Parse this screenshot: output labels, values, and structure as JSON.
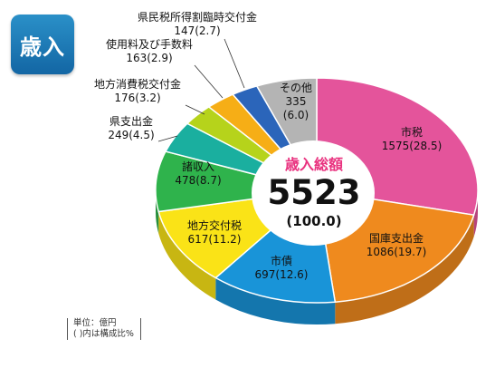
{
  "badge": "歳入",
  "chart_data": {
    "type": "pie",
    "center_title": "歳入総額",
    "total": 5523,
    "total_label": "5523",
    "total_pct_label": "(100.0)",
    "unit": "単位：億円",
    "note": "(  )内は構成比%",
    "slices": [
      {
        "name": "市税",
        "value": 1575,
        "pct": 28.5,
        "value_label": "1575(28.5)",
        "color": "#e4549b"
      },
      {
        "name": "国庫支出金",
        "value": 1086,
        "pct": 19.7,
        "value_label": "1086(19.7)",
        "color": "#ef8a1e"
      },
      {
        "name": "市債",
        "value": 697,
        "pct": 12.6,
        "value_label": "697(12.6)",
        "color": "#1994d8"
      },
      {
        "name": "地方交付税",
        "value": 617,
        "pct": 11.2,
        "value_label": "617(11.2)",
        "color": "#fae317"
      },
      {
        "name": "諸収入",
        "value": 478,
        "pct": 8.7,
        "value_label": "478(8.7)",
        "color": "#2fb34c"
      },
      {
        "name": "県支出金",
        "value": 249,
        "pct": 4.5,
        "value_label": "249(4.5)",
        "color": "#1aaf9f"
      },
      {
        "name": "地方消費税交付金",
        "value": 176,
        "pct": 3.2,
        "value_label": "176(3.2)",
        "color": "#b6d31b"
      },
      {
        "name": "使用料及び手数料",
        "value": 163,
        "pct": 2.9,
        "value_label": "163(2.9)",
        "color": "#f6ae16"
      },
      {
        "name": "県民税所得割臨時交付金",
        "value": 147,
        "pct": 2.7,
        "value_label": "147(2.7)",
        "color": "#2b65ba"
      },
      {
        "name": "その他",
        "value": 335,
        "pct": 6.0,
        "value_label": "335",
        "value_label2": "(6.0)",
        "color": "#b4b4b4"
      }
    ]
  }
}
